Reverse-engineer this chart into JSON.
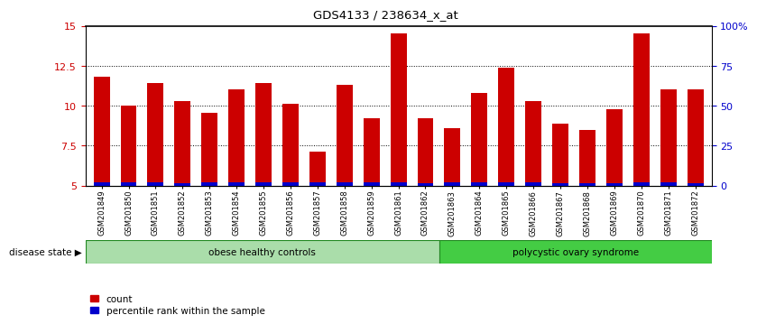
{
  "title": "GDS4133 / 238634_x_at",
  "samples": [
    "GSM201849",
    "GSM201850",
    "GSM201851",
    "GSM201852",
    "GSM201853",
    "GSM201854",
    "GSM201855",
    "GSM201856",
    "GSM201857",
    "GSM201858",
    "GSM201859",
    "GSM201861",
    "GSM201862",
    "GSM201863",
    "GSM201864",
    "GSM201865",
    "GSM201866",
    "GSM201867",
    "GSM201868",
    "GSM201869",
    "GSM201870",
    "GSM201871",
    "GSM201872"
  ],
  "red_vals": [
    11.8,
    10.0,
    11.4,
    10.3,
    9.55,
    11.0,
    11.4,
    10.1,
    7.1,
    11.3,
    9.2,
    14.5,
    9.2,
    8.6,
    10.8,
    12.4,
    10.3,
    8.85,
    8.5,
    9.75,
    14.5,
    11.0,
    11.0
  ],
  "blue_heights": [
    0.18,
    0.22,
    0.18,
    0.15,
    0.2,
    0.2,
    0.18,
    0.2,
    0.18,
    0.18,
    0.2,
    0.18,
    0.15,
    0.18,
    0.2,
    0.2,
    0.18,
    0.15,
    0.15,
    0.15,
    0.2,
    0.18,
    0.15
  ],
  "bar_bottom": 5.0,
  "ylim_left": [
    5,
    15
  ],
  "ylim_right": [
    0,
    100
  ],
  "yticks_left": [
    5,
    7.5,
    10,
    12.5,
    15
  ],
  "ytick_labels_left": [
    "5",
    "7.5",
    "10",
    "12.5",
    "15"
  ],
  "yticks_right": [
    0,
    25,
    50,
    75,
    100
  ],
  "ytick_labels_right": [
    "0",
    "25",
    "50",
    "75",
    "100%"
  ],
  "bar_color_red": "#cc0000",
  "bar_color_blue": "#0000cc",
  "group1_label": "obese healthy controls",
  "group2_label": "polycystic ovary syndrome",
  "group1_n": 13,
  "group2_n": 10,
  "group1_color": "#aaddaa",
  "group2_color": "#44cc44",
  "disease_state_label": "disease state",
  "legend_count_label": "count",
  "legend_percentile_label": "percentile rank within the sample",
  "tick_color_left": "#cc0000",
  "tick_color_right": "#0000cc",
  "grid_yticks": [
    7.5,
    10.0,
    12.5
  ]
}
